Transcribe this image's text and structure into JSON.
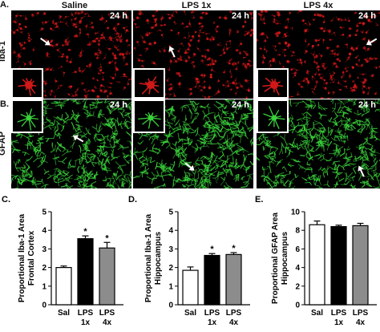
{
  "figure": {
    "row_a_label": "A.",
    "row_b_label": "B.",
    "row_a_stain": "Iba-1",
    "row_b_stain": "GFAP",
    "columns": [
      "Saline",
      "LPS 1x",
      "LPS 4x"
    ],
    "timepoint": "24 h",
    "colors": {
      "iba1": "#d01818",
      "gfap": "#39d03a",
      "background": "#000000"
    }
  },
  "chart_data": [
    {
      "panel_label": "C.",
      "type": "bar",
      "categories": [
        "Sal",
        "LPS\n1x",
        "LPS\n4x"
      ],
      "values": [
        2.0,
        3.55,
        3.05
      ],
      "errors": [
        0.08,
        0.15,
        0.3
      ],
      "significant": [
        false,
        true,
        true
      ],
      "ylabel": "Proportional Iba-1 Area\nFrontal Cortex",
      "ylim": [
        0,
        5
      ],
      "yticks": [
        0,
        1,
        2,
        3,
        4,
        5
      ],
      "bar_colors": [
        "#ffffff",
        "#000000",
        "#8c8c8c"
      ]
    },
    {
      "panel_label": "D.",
      "type": "bar",
      "categories": [
        "Sal",
        "LPS\n1x",
        "LPS\n4x"
      ],
      "values": [
        1.85,
        2.65,
        2.7
      ],
      "errors": [
        0.18,
        0.1,
        0.1
      ],
      "significant": [
        false,
        true,
        true
      ],
      "ylabel": "Proportional Iba-1 Area\nHippocampus",
      "ylim": [
        0,
        5
      ],
      "yticks": [
        0,
        1,
        2,
        3,
        4,
        5
      ],
      "bar_colors": [
        "#ffffff",
        "#000000",
        "#8c8c8c"
      ]
    },
    {
      "panel_label": "E.",
      "type": "bar",
      "categories": [
        "Sal",
        "LPS\n1x",
        "LPS\n4x"
      ],
      "values": [
        8.6,
        8.4,
        8.5
      ],
      "errors": [
        0.4,
        0.15,
        0.25
      ],
      "significant": [
        false,
        false,
        false
      ],
      "ylabel": "Proportional GFAP Area\nHippocampus",
      "ylim": [
        0,
        10
      ],
      "yticks": [
        0,
        2,
        4,
        6,
        8,
        10
      ],
      "bar_colors": [
        "#ffffff",
        "#000000",
        "#8c8c8c"
      ]
    }
  ]
}
